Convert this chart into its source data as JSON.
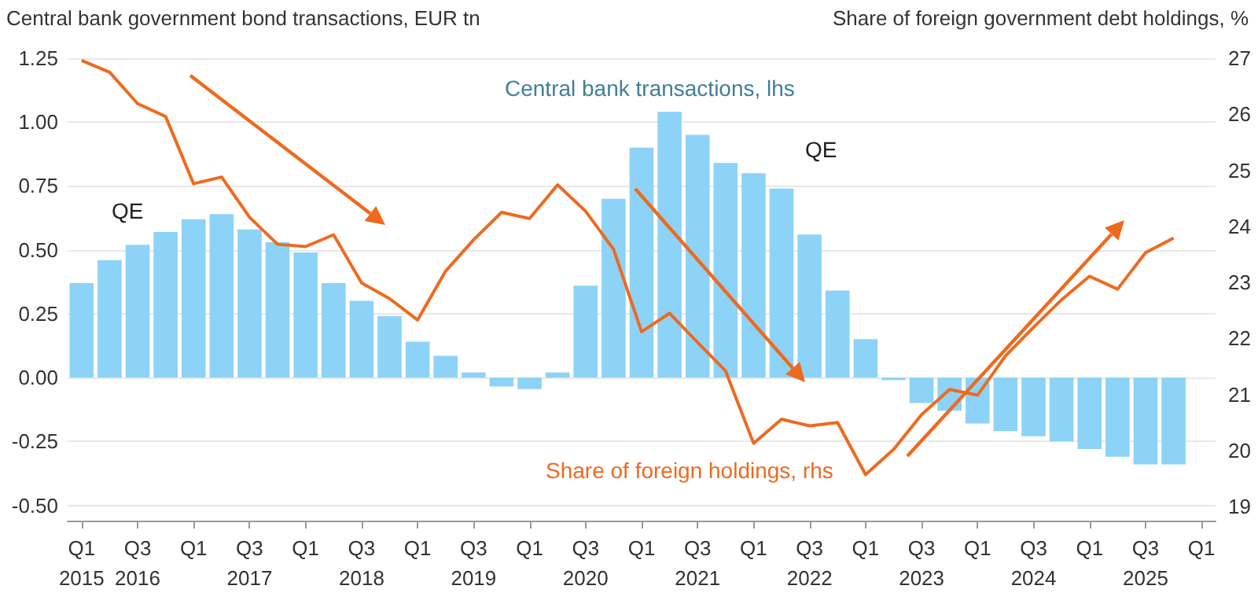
{
  "chart_data": {
    "type": "bar",
    "ylabel": "Central bank government bond transactions, EUR tn",
    "y2label": "Share of foreign government debt holdings, %",
    "categories": [
      "Q1\n2015",
      null,
      "Q3\n2016",
      null,
      "Q1",
      null,
      "Q3\n2017",
      null,
      "Q1",
      null,
      "Q3\n2018",
      null,
      "Q1",
      null,
      "Q3\n2019",
      null,
      "Q1",
      null,
      "Q3\n2020",
      null,
      "Q1",
      null,
      "Q3\n2021",
      null,
      "Q1",
      null,
      "Q3\n2022",
      null,
      "Q1",
      null,
      "Q3\n2023",
      null,
      "Q1",
      null,
      "Q3\n2024",
      null,
      "Q1",
      null,
      "Q3\n2025",
      null,
      "Q1"
    ],
    "series": [
      {
        "name": "Central bank transactions, lhs",
        "color": "#8dd3f7",
        "values": [
          0.37,
          0.46,
          0.52,
          0.57,
          0.62,
          0.64,
          0.58,
          0.53,
          0.49,
          0.37,
          0.3,
          0.24,
          0.14,
          0.085,
          0.02,
          -0.035,
          -0.045,
          0.02,
          0.36,
          0.7,
          0.9,
          1.04,
          0.95,
          0.84,
          0.8,
          0.74,
          0.56,
          0.34,
          0.15,
          -0.01,
          -0.1,
          -0.13,
          -0.18,
          -0.21,
          -0.23,
          -0.25,
          -0.28,
          -0.31,
          -0.34,
          -0.34,
          null
        ]
      },
      {
        "name": "Share of foreign holdings, rhs",
        "type": "line",
        "axis": "y2",
        "color": "#ee6a1f",
        "values": [
          26.96,
          26.75,
          26.19,
          25.96,
          24.76,
          24.88,
          24.16,
          23.68,
          23.64,
          23.85,
          22.99,
          22.71,
          22.33,
          23.2,
          23.76,
          24.25,
          24.14,
          24.74,
          24.27,
          23.59,
          22.12,
          22.45,
          21.93,
          21.42,
          20.13,
          20.56,
          20.44,
          20.5,
          19.57,
          20.02,
          20.64,
          21.09,
          20.99,
          21.69,
          22.2,
          22.69,
          23.11,
          22.88,
          23.53,
          23.79,
          null
        ]
      }
    ],
    "ylim": [
      -0.56,
      1.25
    ],
    "yticks": [
      {
        "value": -0.5,
        "label": "-0.50"
      },
      -0.25,
      {
        "value": 0,
        "label": "0.00"
      },
      0.25,
      {
        "value": 0.5,
        "label": "0.50"
      },
      0.75,
      {
        "value": 1,
        "label": "1.00"
      },
      1.25
    ],
    "y2lim": [
      18.75,
      27
    ],
    "y2ticks": [
      19,
      20,
      21,
      22,
      23,
      24,
      25,
      26,
      27
    ],
    "grid": "y",
    "legend": false,
    "marker": "none",
    "annotations": [
      "QE",
      "QE"
    ]
  }
}
